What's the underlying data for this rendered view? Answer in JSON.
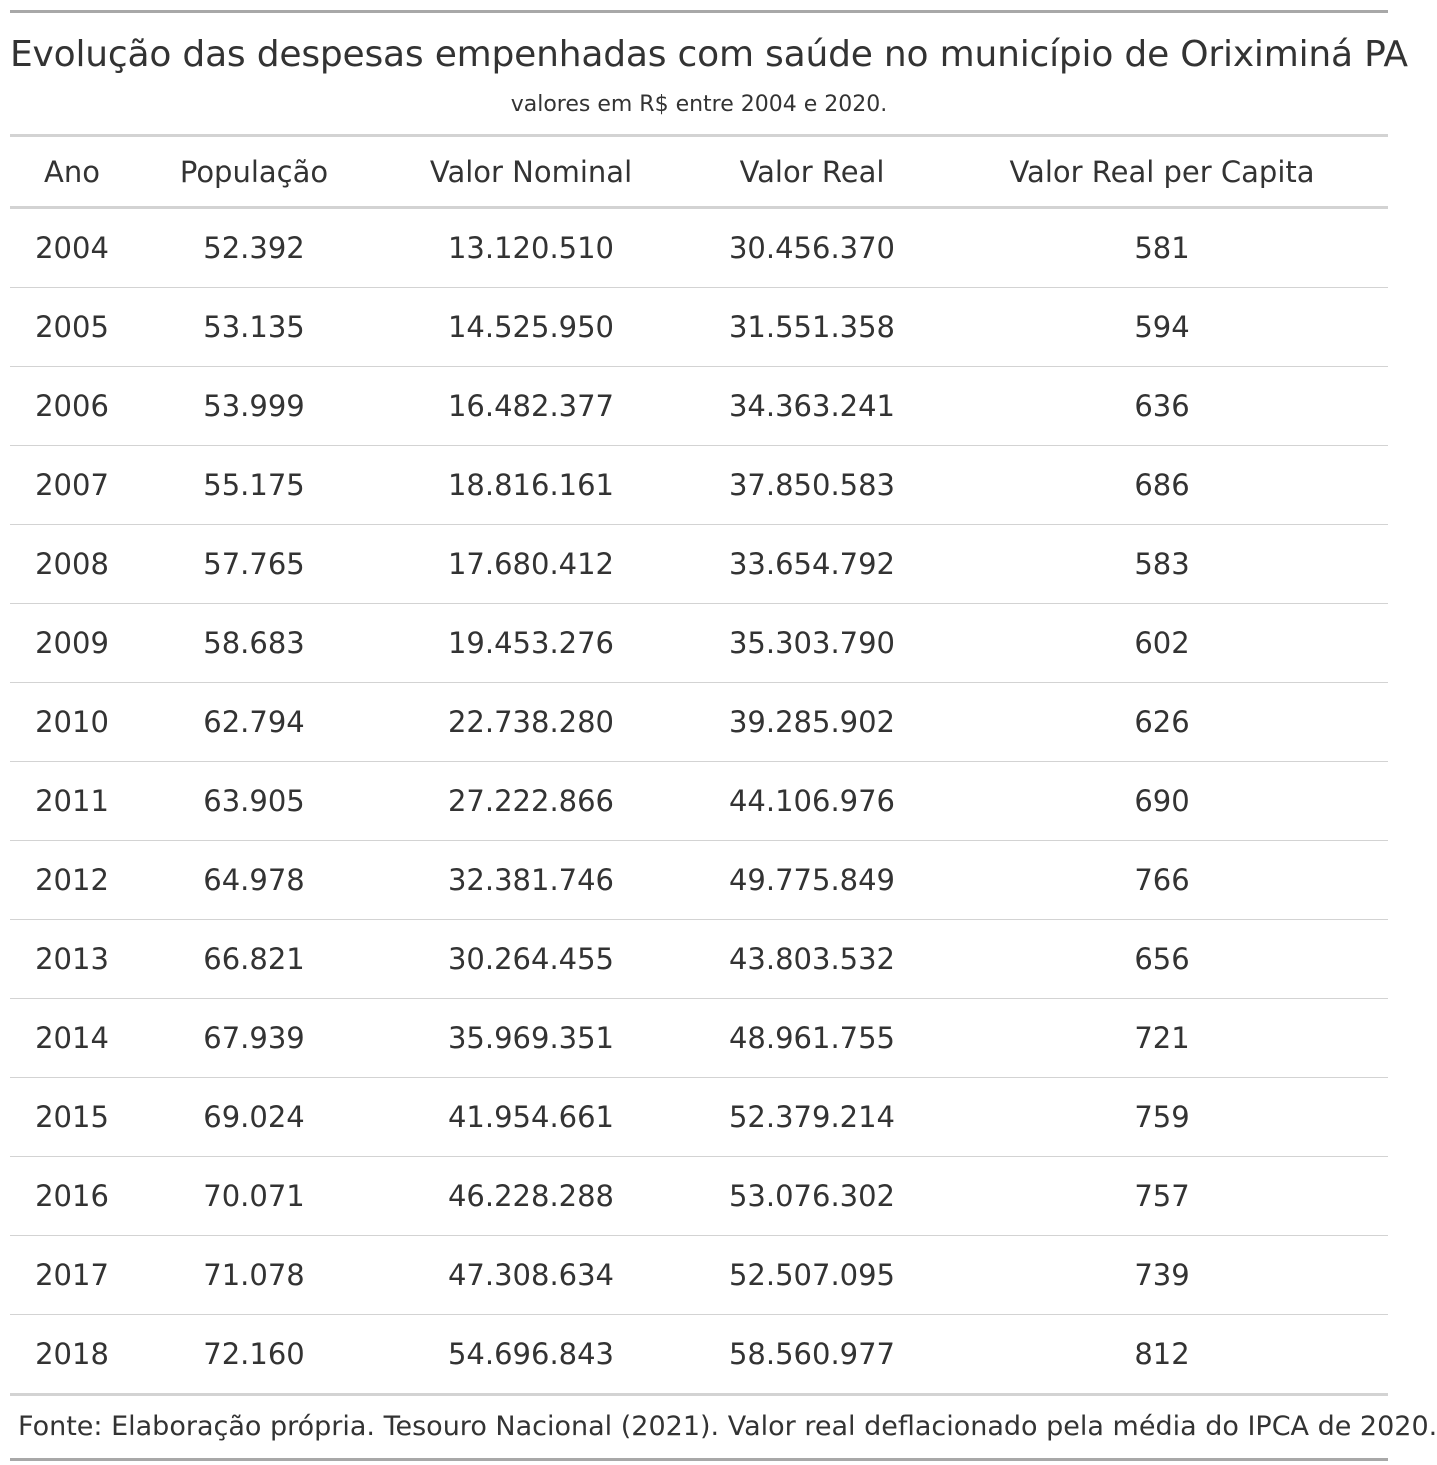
{
  "chart_data": {
    "type": "table",
    "title": "Evolução das despesas empenhadas com saúde no município de Oriximiná PA",
    "subtitle": "valores em R$ entre 2004 e 2020.",
    "columns": [
      "Ano",
      "População",
      "Valor Nominal",
      "Valor Real",
      "Valor Real per Capita"
    ],
    "rows": [
      [
        "2004",
        "52.392",
        "13.120.510",
        "30.456.370",
        "581"
      ],
      [
        "2005",
        "53.135",
        "14.525.950",
        "31.551.358",
        "594"
      ],
      [
        "2006",
        "53.999",
        "16.482.377",
        "34.363.241",
        "636"
      ],
      [
        "2007",
        "55.175",
        "18.816.161",
        "37.850.583",
        "686"
      ],
      [
        "2008",
        "57.765",
        "17.680.412",
        "33.654.792",
        "583"
      ],
      [
        "2009",
        "58.683",
        "19.453.276",
        "35.303.790",
        "602"
      ],
      [
        "2010",
        "62.794",
        "22.738.280",
        "39.285.902",
        "626"
      ],
      [
        "2011",
        "63.905",
        "27.222.866",
        "44.106.976",
        "690"
      ],
      [
        "2012",
        "64.978",
        "32.381.746",
        "49.775.849",
        "766"
      ],
      [
        "2013",
        "66.821",
        "30.264.455",
        "43.803.532",
        "656"
      ],
      [
        "2014",
        "67.939",
        "35.969.351",
        "48.961.755",
        "721"
      ],
      [
        "2015",
        "69.024",
        "41.954.661",
        "52.379.214",
        "759"
      ],
      [
        "2016",
        "70.071",
        "46.228.288",
        "53.076.302",
        "757"
      ],
      [
        "2017",
        "71.078",
        "47.308.634",
        "52.507.095",
        "739"
      ],
      [
        "2018",
        "72.160",
        "54.696.843",
        "58.560.977",
        "812"
      ]
    ],
    "footnote": "Fonte: Elaboração própria. Tesouro Nacional (2021). Valor real deflacionado pela média do IPCA de 2020."
  }
}
